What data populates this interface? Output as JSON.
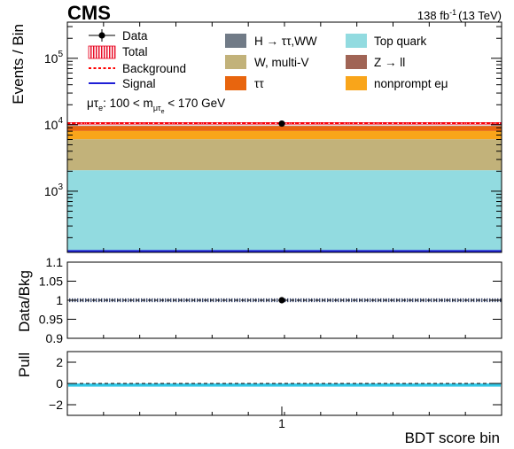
{
  "header": {
    "experiment": "CMS",
    "luminosity": "138 fb",
    "luminosity_exp": "-1",
    "energy": "(13 TeV)"
  },
  "legend": {
    "data": "Data",
    "total": "Total",
    "background": "Background",
    "signal": "Signal",
    "h_tautau_ww": "H → ττ,WW",
    "w_multiv": "W, multi-V",
    "tautau": "ττ",
    "top_quark": "Top quark",
    "z_ll": "Z → ll",
    "nonprompt": "nonprompt eμ"
  },
  "selection": {
    "lhs_mu": "μτ",
    "lhs_sub": "e",
    "mid": ": 100 < m",
    "m_sub": "μτ",
    "m_subsub": "e",
    "rhs": " < 170 GeV"
  },
  "colors": {
    "h_tautau_ww": "#717b87",
    "w_multiv": "#c2b27a",
    "tautau": "#e8650e",
    "top_quark": "#92dbe0",
    "z_ll": "#a06455",
    "nonprompt": "#f9a51a",
    "total_band": "#e8001c",
    "background_line": "#ff0000",
    "signal_line": "#1f1fd6",
    "pull_band": "#34c8e6"
  },
  "chart_data": [
    {
      "type": "bar",
      "panel": "main",
      "ylabel": "Events / Bin",
      "yscale": "log",
      "ylim": [
        120,
        350000
      ],
      "y_ticks": [
        {
          "value": 1000,
          "base": "10",
          "exp": "3"
        },
        {
          "value": 10000,
          "base": "10",
          "exp": "4"
        },
        {
          "value": 100000,
          "base": "10",
          "exp": "5"
        }
      ],
      "categories": [
        "1"
      ],
      "stack": [
        {
          "name": "Top quark",
          "values": [
            1950
          ]
        },
        {
          "name": "W, multi-V",
          "values": [
            4000
          ]
        },
        {
          "name": "nonprompt eμ",
          "values": [
            2000
          ]
        },
        {
          "name": "ττ",
          "values": [
            1500
          ]
        },
        {
          "name": "Z → ll",
          "values": [
            100
          ]
        },
        {
          "name": "H → ττ,WW",
          "values": [
            50
          ]
        }
      ],
      "total": [
        10500
      ],
      "data": [
        10400
      ],
      "signal": [
        120
      ]
    },
    {
      "type": "scatter",
      "panel": "ratio",
      "ylabel": "Data/Bkg",
      "ylim": [
        0.9,
        1.1
      ],
      "y_ticks": [
        "0.9",
        "0.95",
        "1",
        "1.05",
        "1.1"
      ],
      "x": [
        "1"
      ],
      "values": [
        1.0
      ],
      "band": [
        0.995,
        1.005
      ]
    },
    {
      "type": "bar",
      "panel": "pull",
      "ylabel": "Pull",
      "ylim": [
        -3,
        3
      ],
      "y_ticks": [
        "-2",
        "0",
        "2"
      ],
      "x": [
        "1"
      ],
      "values": [
        -0.3
      ],
      "xlabel": "BDT score bin",
      "x_tick_label": "1"
    }
  ]
}
